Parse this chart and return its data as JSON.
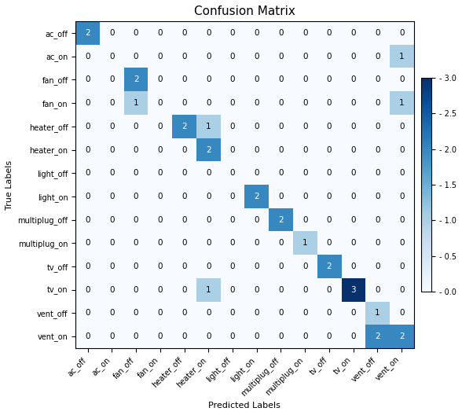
{
  "title": "Confusion Matrix",
  "xlabel": "Predicted Labels",
  "ylabel": "True Labels",
  "labels": [
    "ac_off",
    "ac_on",
    "fan_off",
    "fan_on",
    "heater_off",
    "heater_on",
    "light_off",
    "light_on",
    "multiplug_off",
    "multiplug_on",
    "tv_off",
    "tv_on",
    "vent_off",
    "vent_on"
  ],
  "matrix": [
    [
      2,
      0,
      0,
      0,
      0,
      0,
      0,
      0,
      0,
      0,
      0,
      0,
      0,
      0
    ],
    [
      0,
      0,
      0,
      0,
      0,
      0,
      0,
      0,
      0,
      0,
      0,
      0,
      0,
      1
    ],
    [
      0,
      0,
      2,
      0,
      0,
      0,
      0,
      0,
      0,
      0,
      0,
      0,
      0,
      0
    ],
    [
      0,
      0,
      1,
      0,
      0,
      0,
      0,
      0,
      0,
      0,
      0,
      0,
      0,
      1
    ],
    [
      0,
      0,
      0,
      0,
      2,
      1,
      0,
      0,
      0,
      0,
      0,
      0,
      0,
      0
    ],
    [
      0,
      0,
      0,
      0,
      0,
      2,
      0,
      0,
      0,
      0,
      0,
      0,
      0,
      0
    ],
    [
      0,
      0,
      0,
      0,
      0,
      0,
      0,
      0,
      0,
      0,
      0,
      0,
      0,
      0
    ],
    [
      0,
      0,
      0,
      0,
      0,
      0,
      0,
      2,
      0,
      0,
      0,
      0,
      0,
      0
    ],
    [
      0,
      0,
      0,
      0,
      0,
      0,
      0,
      0,
      2,
      0,
      0,
      0,
      0,
      0
    ],
    [
      0,
      0,
      0,
      0,
      0,
      0,
      0,
      0,
      0,
      1,
      0,
      0,
      0,
      0
    ],
    [
      0,
      0,
      0,
      0,
      0,
      0,
      0,
      0,
      0,
      0,
      2,
      0,
      0,
      0
    ],
    [
      0,
      0,
      0,
      0,
      0,
      1,
      0,
      0,
      0,
      0,
      0,
      3,
      0,
      0
    ],
    [
      0,
      0,
      0,
      0,
      0,
      0,
      0,
      0,
      0,
      0,
      0,
      0,
      1,
      0
    ],
    [
      0,
      0,
      0,
      0,
      0,
      0,
      0,
      0,
      0,
      0,
      0,
      0,
      2,
      2
    ]
  ],
  "vmin": 0,
  "vmax": 3,
  "cmap": "Blues",
  "figsize": [
    5.88,
    5.28
  ],
  "dpi": 100,
  "title_fontsize": 11,
  "label_fontsize": 8,
  "tick_fontsize": 7,
  "annot_fontsize": 7.5,
  "cbar_tick_labels": [
    "- 0.0",
    "- 0.5",
    "- 1.0",
    "- 1.5",
    "- 2.0",
    "- 2.5",
    "- 3.0"
  ],
  "cbar_ticks": [
    0.0,
    0.5,
    1.0,
    1.5,
    2.0,
    2.5,
    3.0
  ]
}
